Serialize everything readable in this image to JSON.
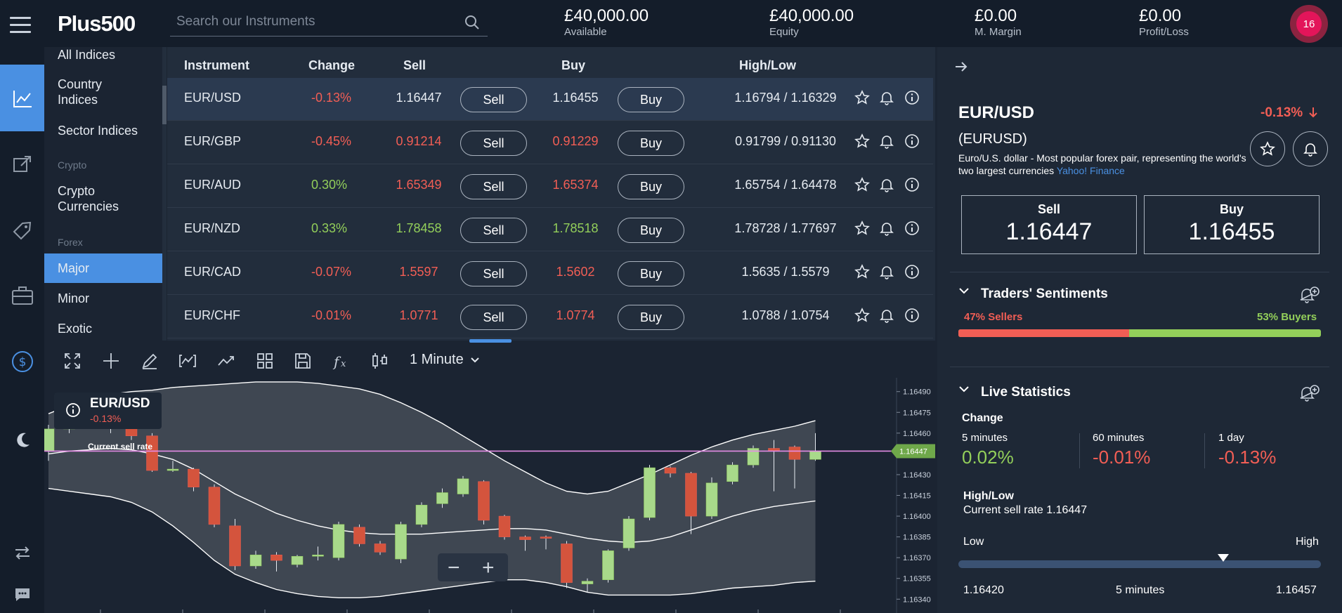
{
  "app": {
    "logo": "Plus500"
  },
  "search": {
    "placeholder": "Search our Instruments"
  },
  "account": [
    {
      "value": "£40,000.00",
      "label": "Available"
    },
    {
      "value": "£40,000.00",
      "label": "Equity"
    },
    {
      "value": "£0.00",
      "label": "M. Margin"
    },
    {
      "value": "£0.00",
      "label": "Profit/Loss"
    }
  ],
  "notifications": {
    "count": "16"
  },
  "rail": [
    "chart-line-icon",
    "trade-arrows-icon",
    "tag-icon",
    "briefcase-icon",
    "dollar-circle-icon",
    "moon-icon",
    "refresh-icon",
    "chat-icon"
  ],
  "subnav": {
    "items": [
      "All Indices",
      "Country Indices",
      "Sector Indices",
      "Crypto Currencies",
      "Major",
      "Minor",
      "Exotic"
    ],
    "categories": [
      "Crypto",
      "Forex"
    ],
    "selected": "Major"
  },
  "table": {
    "headers": [
      "Instrument",
      "Change",
      "Sell",
      "Buy",
      "High/Low"
    ],
    "sell_label": "Sell",
    "buy_label": "Buy",
    "rows": [
      {
        "instrument": "EUR/USD",
        "change": "-0.13%",
        "sell": "1.16447",
        "buy": "1.16455",
        "highlow": "1.16794 / 1.16329"
      },
      {
        "instrument": "EUR/GBP",
        "change": "-0.45%",
        "sell": "0.91214",
        "buy": "0.91229",
        "highlow": "0.91799 / 0.91130"
      },
      {
        "instrument": "EUR/AUD",
        "change": "0.30%",
        "sell": "1.65349",
        "buy": "1.65374",
        "highlow": "1.65754 / 1.64478"
      },
      {
        "instrument": "EUR/NZD",
        "change": "0.33%",
        "sell": "1.78458",
        "buy": "1.78518",
        "highlow": "1.78728 / 1.77697"
      },
      {
        "instrument": "EUR/CAD",
        "change": "-0.07%",
        "sell": "1.5597",
        "buy": "1.5602",
        "highlow": "1.5635 / 1.5579"
      },
      {
        "instrument": "EUR/CHF",
        "change": "-0.01%",
        "sell": "1.0771",
        "buy": "1.0774",
        "highlow": "1.0788 / 1.0754"
      }
    ]
  },
  "chart_toolbar": {
    "timeframe": "1 Minute"
  },
  "chart": {
    "instrument": "EUR/USD",
    "change": "-0.13%",
    "current_label": "Current sell rate",
    "current_value": "1.16447",
    "y_ticks": [
      "1.16490",
      "1.16475",
      "1.16460",
      "1.16430",
      "1.16415",
      "1.16400",
      "1.16385",
      "1.16370",
      "1.16355",
      "1.16340"
    ],
    "zoom_out": "−",
    "zoom_in": "+"
  },
  "chart_data": {
    "type": "candlestick",
    "title": "EUR/USD",
    "ylim": [
      1.1633,
      1.165
    ],
    "y_ticks": [
      1.1649,
      1.16475,
      1.1646,
      1.1643,
      1.16415,
      1.164,
      1.16385,
      1.1637,
      1.16355,
      1.1634
    ],
    "current_sell_rate": 1.16447,
    "candles": [
      {
        "o": 1.16447,
        "c": 1.16463,
        "h": 1.16466,
        "l": 1.1644
      },
      {
        "o": 1.16463,
        "c": 1.1647,
        "h": 1.16478,
        "l": 1.1646
      },
      {
        "o": 1.1647,
        "c": 1.16472,
        "h": 1.1648,
        "l": 1.16465
      },
      {
        "o": 1.16472,
        "c": 1.16466,
        "h": 1.16475,
        "l": 1.1646
      },
      {
        "o": 1.16466,
        "c": 1.16458,
        "h": 1.1647,
        "l": 1.16455
      },
      {
        "o": 1.16458,
        "c": 1.16433,
        "h": 1.1646,
        "l": 1.16432
      },
      {
        "o": 1.16434,
        "c": 1.16434,
        "h": 1.1644,
        "l": 1.16432
      },
      {
        "o": 1.16434,
        "c": 1.16421,
        "h": 1.16435,
        "l": 1.16418
      },
      {
        "o": 1.16421,
        "c": 1.16394,
        "h": 1.16423,
        "l": 1.16392
      },
      {
        "o": 1.16393,
        "c": 1.16364,
        "h": 1.16398,
        "l": 1.16361
      },
      {
        "o": 1.16364,
        "c": 1.16372,
        "h": 1.16375,
        "l": 1.16362
      },
      {
        "o": 1.16372,
        "c": 1.16368,
        "h": 1.16374,
        "l": 1.1636
      },
      {
        "o": 1.16365,
        "c": 1.16371,
        "h": 1.16372,
        "l": 1.16363
      },
      {
        "o": 1.16371,
        "c": 1.16372,
        "h": 1.16378,
        "l": 1.16368
      },
      {
        "o": 1.1637,
        "c": 1.16394,
        "h": 1.16396,
        "l": 1.16368
      },
      {
        "o": 1.16392,
        "c": 1.1638,
        "h": 1.16394,
        "l": 1.16378
      },
      {
        "o": 1.1638,
        "c": 1.16374,
        "h": 1.16382,
        "l": 1.16372
      },
      {
        "o": 1.16369,
        "c": 1.16394,
        "h": 1.16396,
        "l": 1.16366
      },
      {
        "o": 1.16394,
        "c": 1.16408,
        "h": 1.1641,
        "l": 1.16392
      },
      {
        "o": 1.16409,
        "c": 1.16417,
        "h": 1.1642,
        "l": 1.16406
      },
      {
        "o": 1.16416,
        "c": 1.16427,
        "h": 1.16429,
        "l": 1.16414
      },
      {
        "o": 1.16425,
        "c": 1.16397,
        "h": 1.16426,
        "l": 1.16394
      },
      {
        "o": 1.164,
        "c": 1.16385,
        "h": 1.16401,
        "l": 1.16383
      },
      {
        "o": 1.16385,
        "c": 1.16383,
        "h": 1.16386,
        "l": 1.16375
      },
      {
        "o": 1.16385,
        "c": 1.16384,
        "h": 1.16386,
        "l": 1.16376
      },
      {
        "o": 1.1638,
        "c": 1.16352,
        "h": 1.16382,
        "l": 1.16348
      },
      {
        "o": 1.16351,
        "c": 1.16353,
        "h": 1.16355,
        "l": 1.16345
      },
      {
        "o": 1.16354,
        "c": 1.16375,
        "h": 1.16376,
        "l": 1.16352
      },
      {
        "o": 1.16377,
        "c": 1.16398,
        "h": 1.164,
        "l": 1.16375
      },
      {
        "o": 1.16399,
        "c": 1.16435,
        "h": 1.16437,
        "l": 1.16397
      },
      {
        "o": 1.16435,
        "c": 1.16431,
        "h": 1.16436,
        "l": 1.16428
      },
      {
        "o": 1.16431,
        "c": 1.164,
        "h": 1.16432,
        "l": 1.16387
      },
      {
        "o": 1.164,
        "c": 1.16424,
        "h": 1.16428,
        "l": 1.16398
      },
      {
        "o": 1.16425,
        "c": 1.16437,
        "h": 1.16439,
        "l": 1.16423
      },
      {
        "o": 1.16437,
        "c": 1.16449,
        "h": 1.16451,
        "l": 1.16435
      },
      {
        "o": 1.16449,
        "c": 1.16447,
        "h": 1.16455,
        "l": 1.16418
      },
      {
        "o": 1.1645,
        "c": 1.16441,
        "h": 1.16451,
        "l": 1.1642
      },
      {
        "o": 1.16441,
        "c": 1.16447,
        "h": 1.1646,
        "l": 1.1644
      }
    ],
    "bollinger_upper": [
      1.16474,
      1.1648,
      1.16485,
      1.16488,
      1.1649,
      1.16491,
      1.16493,
      1.16494,
      1.16495,
      1.16496,
      1.16497,
      1.16497,
      1.16497,
      1.16496,
      1.16494,
      1.16492,
      1.16488,
      1.16482,
      1.16475,
      1.16467,
      1.16458,
      1.16449,
      1.1644,
      1.16432,
      1.16424,
      1.16418,
      1.16416,
      1.16418,
      1.16424,
      1.1643,
      1.16437,
      1.16444,
      1.1645,
      1.16455,
      1.16459,
      1.16462,
      1.16465,
      1.16469
    ],
    "bollinger_mid": [
      1.16445,
      1.16447,
      1.16448,
      1.16449,
      1.16448,
      1.16445,
      1.16441,
      1.16434,
      1.16425,
      1.16416,
      1.16409,
      1.16402,
      1.16397,
      1.16393,
      1.1639,
      1.16388,
      1.16387,
      1.16387,
      1.16387,
      1.16388,
      1.16389,
      1.1639,
      1.16391,
      1.16391,
      1.1639,
      1.16387,
      1.16384,
      1.16382,
      1.16381,
      1.16382,
      1.16385,
      1.1639,
      1.16395,
      1.164,
      1.16404,
      1.16407,
      1.16409,
      1.16411
    ],
    "bollinger_lower": [
      1.1642,
      1.16418,
      1.16416,
      1.16414,
      1.1641,
      1.16403,
      1.16393,
      1.16381,
      1.16368,
      1.16358,
      1.16352,
      1.16347,
      1.16344,
      1.16342,
      1.16341,
      1.16341,
      1.16342,
      1.16344,
      1.16346,
      1.16348,
      1.1635,
      1.16352,
      1.16354,
      1.16354,
      1.16352,
      1.16349,
      1.16345,
      1.16343,
      1.16343,
      1.16343,
      1.16343,
      1.16344,
      1.16346,
      1.16348,
      1.16349,
      1.1635,
      1.16352,
      1.16353
    ]
  },
  "detail": {
    "title": "EUR/USD",
    "change": "-0.13%",
    "code": "(EURUSD)",
    "description": "Euro/U.S. dollar - Most popular forex pair, representing the world's two largest currencies",
    "source": "Yahoo! Finance",
    "sell_label": "Sell",
    "sell_value": "1.16447",
    "buy_label": "Buy",
    "buy_value": "1.16455"
  },
  "sentiment": {
    "title": "Traders' Sentiments",
    "sellers": "47% Sellers",
    "buyers": "53% Buyers",
    "sellers_fraction": 0.47
  },
  "live": {
    "title": "Live Statistics",
    "change_label": "Change",
    "periods": [
      {
        "label": "5 minutes",
        "value": "0.02%"
      },
      {
        "label": "60 minutes",
        "value": "-0.01%"
      },
      {
        "label": "1 day",
        "value": "-0.13%"
      }
    ],
    "highlow_title": "High/Low",
    "current": "Current sell rate 1.16447",
    "low_label": "Low",
    "high_label": "High",
    "low_value": "1.16420",
    "period": "5 minutes",
    "high_value": "1.16457",
    "marker_fraction": 0.73
  },
  "colors": {
    "accent": "#4a90e2",
    "up": "#93cf5a",
    "down": "#f25e55",
    "current_line": "#e58ce6",
    "notification": "#e3155a"
  }
}
